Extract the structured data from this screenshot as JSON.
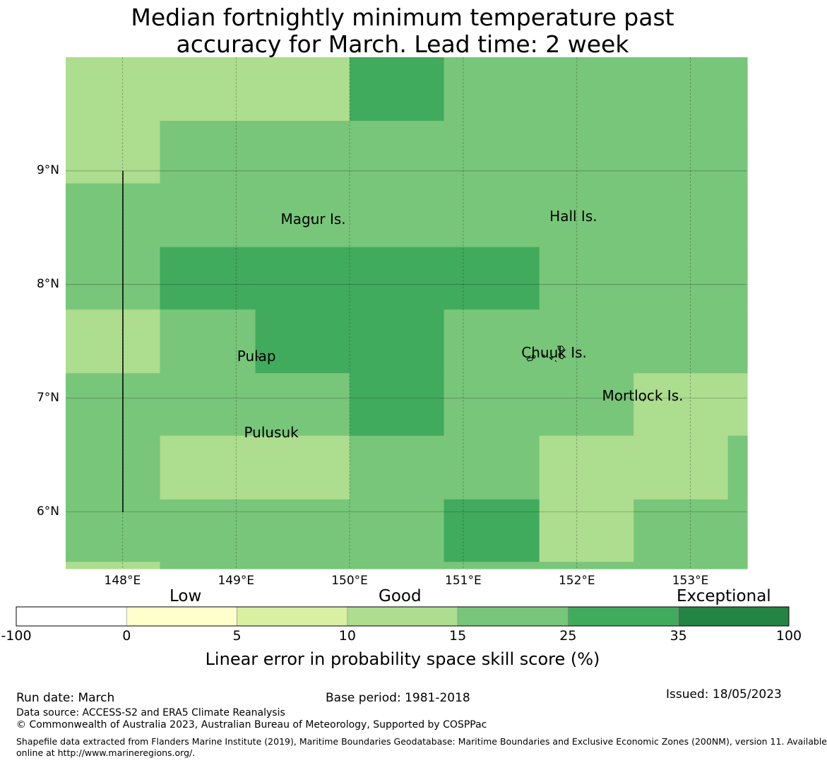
{
  "title_line1": "Median fortnightly minimum temperature past",
  "title_line2": "accuracy for March. Lead time: 2 week",
  "chart_data": {
    "type": "heatmap",
    "title": "Median fortnightly minimum temperature past accuracy for March. Lead time: 2 week",
    "xlim": [
      147.5,
      153.5
    ],
    "ylim": [
      5.5,
      10.0
    ],
    "x_ticks": [
      "148°E",
      "149°E",
      "150°E",
      "151°E",
      "152°E",
      "153°E"
    ],
    "y_ticks": [
      "6°N",
      "7°N",
      "8°N",
      "9°N"
    ],
    "grid": true,
    "x_edges": [
      147.5,
      148.33,
      149.17,
      150.0,
      150.83,
      151.67,
      152.5,
      153.33,
      153.5
    ],
    "y_edges": [
      10.0,
      9.44,
      8.89,
      8.33,
      7.78,
      7.22,
      6.67,
      6.11,
      5.56,
      5.5
    ],
    "cells": [
      [
        3,
        3,
        3,
        5,
        4,
        4,
        4,
        4
      ],
      [
        3,
        4,
        4,
        4,
        4,
        4,
        4,
        4
      ],
      [
        4,
        4,
        4,
        4,
        4,
        4,
        4,
        4
      ],
      [
        4,
        5,
        5,
        5,
        5,
        4,
        4,
        4
      ],
      [
        3,
        4,
        5,
        5,
        4,
        4,
        4,
        4
      ],
      [
        4,
        4,
        4,
        5,
        4,
        4,
        3,
        3
      ],
      [
        4,
        3,
        3,
        4,
        4,
        3,
        3,
        4
      ],
      [
        4,
        4,
        4,
        4,
        5,
        3,
        4,
        4
      ],
      [
        3,
        4,
        4,
        4,
        4,
        4,
        4,
        4
      ]
    ],
    "colorbar": {
      "label": "Linear error in probability space skill score (%)",
      "ticks": [
        "-100",
        "0",
        "5",
        "10",
        "15",
        "25",
        "35",
        "100"
      ],
      "colors": [
        "#ffffff",
        "#ffffcc",
        "#d9f0a3",
        "#addd8e",
        "#78c679",
        "#41ab5d",
        "#238443"
      ],
      "categories": [
        "Low",
        "Good",
        "Exceptional"
      ]
    },
    "places": [
      {
        "name": "Magur Is.",
        "lon": 149.68,
        "lat": 8.58
      },
      {
        "name": "Hall Is.",
        "lon": 151.97,
        "lat": 8.6
      },
      {
        "name": "Pulap",
        "lon": 149.18,
        "lat": 7.37
      },
      {
        "name": "Chuuk Is.",
        "lon": 151.8,
        "lat": 7.4
      },
      {
        "name": "Mortlock Is.",
        "lon": 152.58,
        "lat": 7.02
      },
      {
        "name": "Pulusuk",
        "lon": 149.31,
        "lat": 6.7
      }
    ]
  },
  "footer": {
    "run_date": "Run date: March",
    "base_period": "Base period: 1981-2018",
    "issued": "Issued: 18/05/2023",
    "data_source": "Data source: ACCESS-S2 and ERA5 Climate Reanalysis",
    "copyright": "© Commonwealth of Australia 2023, Australian Bureau of Meteorology, Supported by COSPPac",
    "shapefile_line1": "Shapefile data extracted from Flanders Marine Institute (2019), Maritime Boundaries Geodatabase: Maritime Boundaries and Exclusive Economic Zones (200NM), version 11. Available",
    "shapefile_line2": "online at http://www.marineregions.org/."
  }
}
